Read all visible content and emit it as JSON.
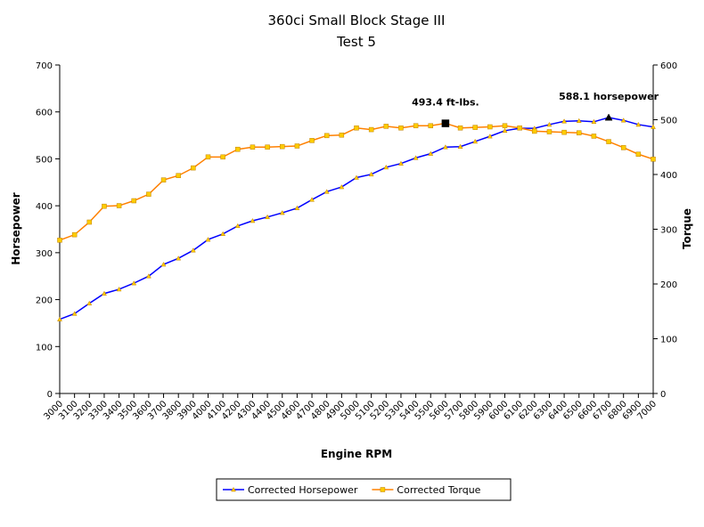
{
  "chart_data": {
    "type": "line",
    "title": "360ci Small Block Stage III",
    "subtitle": "Test 5",
    "xlabel": "Engine RPM",
    "ylabel": "Horsepower",
    "y2label": "Torque",
    "x": [
      3000,
      3100,
      3200,
      3300,
      3400,
      3500,
      3600,
      3700,
      3800,
      3900,
      4000,
      4100,
      4200,
      4300,
      4400,
      4500,
      4600,
      4700,
      4800,
      4900,
      5000,
      5100,
      5200,
      5300,
      5400,
      5500,
      5600,
      5700,
      5800,
      5900,
      6000,
      6100,
      6200,
      6300,
      6400,
      6500,
      6600,
      6700,
      6800,
      6900,
      7000
    ],
    "xlim": [
      3000,
      7000
    ],
    "xticks": [
      3000,
      3100,
      3200,
      3300,
      3400,
      3500,
      3600,
      3700,
      3800,
      3900,
      4000,
      4100,
      4200,
      4300,
      4400,
      4500,
      4600,
      4700,
      4800,
      4900,
      5000,
      5100,
      5200,
      5300,
      5400,
      5500,
      5600,
      5700,
      5800,
      5900,
      6000,
      6100,
      6200,
      6300,
      6400,
      6500,
      6600,
      6700,
      6800,
      6900,
      7000
    ],
    "ylim": [
      0,
      700
    ],
    "yticks": [
      0,
      100,
      200,
      300,
      400,
      500,
      600,
      700
    ],
    "y2lim": [
      0,
      600
    ],
    "y2ticks": [
      0,
      100,
      200,
      300,
      400,
      500,
      600
    ],
    "series": [
      {
        "name": "Corrected Horsepower",
        "color": "#0000ff",
        "marker": "triangle",
        "marker_color": "#ffcc00",
        "values": [
          158,
          170,
          192,
          213,
          222,
          235,
          250,
          275,
          288,
          305,
          328,
          340,
          357,
          368,
          376,
          385,
          395,
          413,
          430,
          440,
          460,
          467,
          482,
          490,
          502,
          511,
          525,
          526,
          537,
          548,
          560,
          565,
          565,
          573,
          580,
          581,
          579,
          588.1,
          582,
          573,
          568
        ]
      },
      {
        "name": "Corrected Torque",
        "color": "#ff8000",
        "marker": "square",
        "marker_color": "#ffcc00",
        "axis": "y2",
        "values": [
          280,
          290,
          313,
          342,
          343,
          352,
          364,
          390,
          398,
          412,
          432,
          432,
          446,
          450,
          450,
          451,
          452,
          462,
          471,
          472,
          485,
          482,
          488,
          485,
          489,
          489,
          493.4,
          485,
          486,
          487,
          489,
          485,
          479,
          478,
          477,
          476,
          470,
          460,
          449,
          437,
          428
        ]
      }
    ],
    "annotations": [
      {
        "text": "493.4 ft-lbs.",
        "series": 1,
        "index": 26,
        "marker": "square"
      },
      {
        "text": "588.1 horsepower",
        "series": 0,
        "index": 37,
        "marker": "triangle"
      }
    ],
    "legend": "bottom"
  }
}
